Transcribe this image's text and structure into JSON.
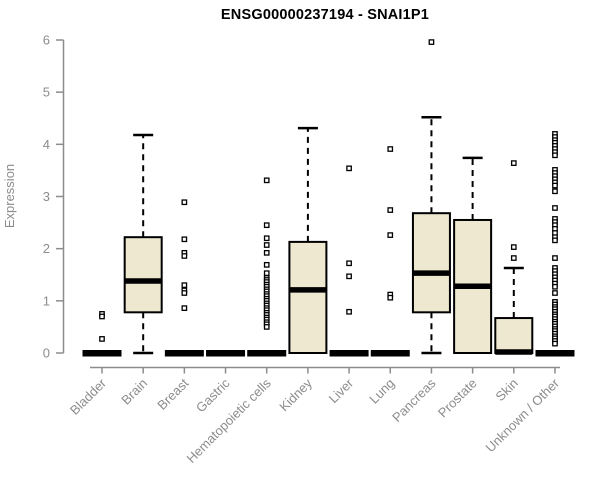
{
  "chart_data": {
    "type": "boxplot",
    "title": "ENSG00000237194 - SNAI1P1",
    "xlabel": "",
    "ylabel": "Expression",
    "ylim": [
      0,
      6
    ],
    "yticks": [
      0,
      1,
      2,
      3,
      4,
      5,
      6
    ],
    "grid": false,
    "legend": "none",
    "categories": [
      "Bladder",
      "Brain",
      "Breast",
      "Gastric",
      "Hematopoietic cells",
      "Kidney",
      "Liver",
      "Lung",
      "Pancreas",
      "Prostate",
      "Skin",
      "Unknown / Other"
    ],
    "series": [
      {
        "name": "Bladder",
        "q1": 0,
        "median": 0,
        "q3": 0,
        "whisker_low": 0,
        "whisker_high": 0,
        "outliers": [
          0.75,
          0.7,
          0.27
        ]
      },
      {
        "name": "Brain",
        "q1": 0.78,
        "median": 1.38,
        "q3": 2.22,
        "whisker_low": 0,
        "whisker_high": 4.18,
        "outliers": []
      },
      {
        "name": "Breast",
        "q1": 0,
        "median": 0,
        "q3": 0,
        "whisker_low": 0,
        "whisker_high": 0,
        "outliers": [
          2.89,
          2.18,
          1.92,
          1.86,
          1.3,
          1.2,
          1.15,
          0.86
        ]
      },
      {
        "name": "Gastric",
        "q1": 0,
        "median": 0,
        "q3": 0,
        "whisker_low": 0,
        "whisker_high": 0,
        "outliers": []
      },
      {
        "name": "Hematopoietic cells",
        "q1": 0,
        "median": 0,
        "q3": 0,
        "whisker_low": 0,
        "whisker_high": 0,
        "outliers": [
          3.31,
          2.45,
          2.2,
          2.07,
          1.92,
          1.69,
          1.53,
          1.44,
          1.4,
          1.36,
          1.31,
          1.27,
          1.22,
          1.18,
          1.13,
          1.09,
          1.04,
          1.0,
          0.95,
          0.91,
          0.86,
          0.82,
          0.77,
          0.73,
          0.68,
          0.64,
          0.59,
          0.55,
          0.5
        ]
      },
      {
        "name": "Kidney",
        "q1": 0,
        "median": 1.21,
        "q3": 2.13,
        "whisker_low": 0,
        "whisker_high": 4.31,
        "outliers": []
      },
      {
        "name": "Liver",
        "q1": 0,
        "median": 0,
        "q3": 0,
        "whisker_low": 0,
        "whisker_high": 0,
        "outliers": [
          3.54,
          1.72,
          1.47,
          0.79
        ]
      },
      {
        "name": "Lung",
        "q1": 0,
        "median": 0,
        "q3": 0,
        "whisker_low": 0,
        "whisker_high": 0,
        "outliers": [
          3.91,
          2.74,
          2.26,
          1.12,
          1.06
        ]
      },
      {
        "name": "Pancreas",
        "q1": 0.78,
        "median": 1.53,
        "q3": 2.68,
        "whisker_low": 0,
        "whisker_high": 4.52,
        "outliers": [
          5.96
        ]
      },
      {
        "name": "Prostate",
        "q1": 0,
        "median": 1.28,
        "q3": 2.55,
        "whisker_low": 0,
        "whisker_high": 3.74,
        "outliers": []
      },
      {
        "name": "Skin",
        "q1": 0,
        "median": 0.02,
        "q3": 0.67,
        "whisker_low": 0,
        "whisker_high": 1.63,
        "outliers": [
          3.64,
          2.03,
          1.82
        ]
      },
      {
        "name": "Unknown / Other",
        "q1": 0,
        "median": 0,
        "q3": 0,
        "whisker_low": 0,
        "whisker_high": 0,
        "outliers": [
          4.2,
          4.14,
          4.08,
          4.03,
          3.97,
          3.91,
          3.85,
          3.79,
          3.51,
          3.45,
          3.39,
          3.33,
          3.27,
          3.21,
          3.1,
          2.78,
          2.57,
          2.51,
          2.45,
          2.38,
          2.3,
          2.22,
          2.16,
          1.82,
          1.63,
          1.57,
          1.51,
          1.45,
          1.39,
          1.33,
          1.27,
          1.15,
          0.98,
          0.93,
          0.88,
          0.84,
          0.79,
          0.74,
          0.7,
          0.65,
          0.6,
          0.56,
          0.51,
          0.46,
          0.42,
          0.37,
          0.32,
          0.28,
          0.23,
          0.18
        ]
      }
    ]
  },
  "colors": {
    "box_fill": "#EDE8CF",
    "box_border": "#000000",
    "median": "#000000",
    "whisker": "#000000",
    "outlier_stroke": "#000000",
    "outlier_fill": "#FFFFFF",
    "axis": "#8C8C8C",
    "tick_label": "#8C8C8C",
    "title": "#000000",
    "background": "#FFFFFF"
  }
}
